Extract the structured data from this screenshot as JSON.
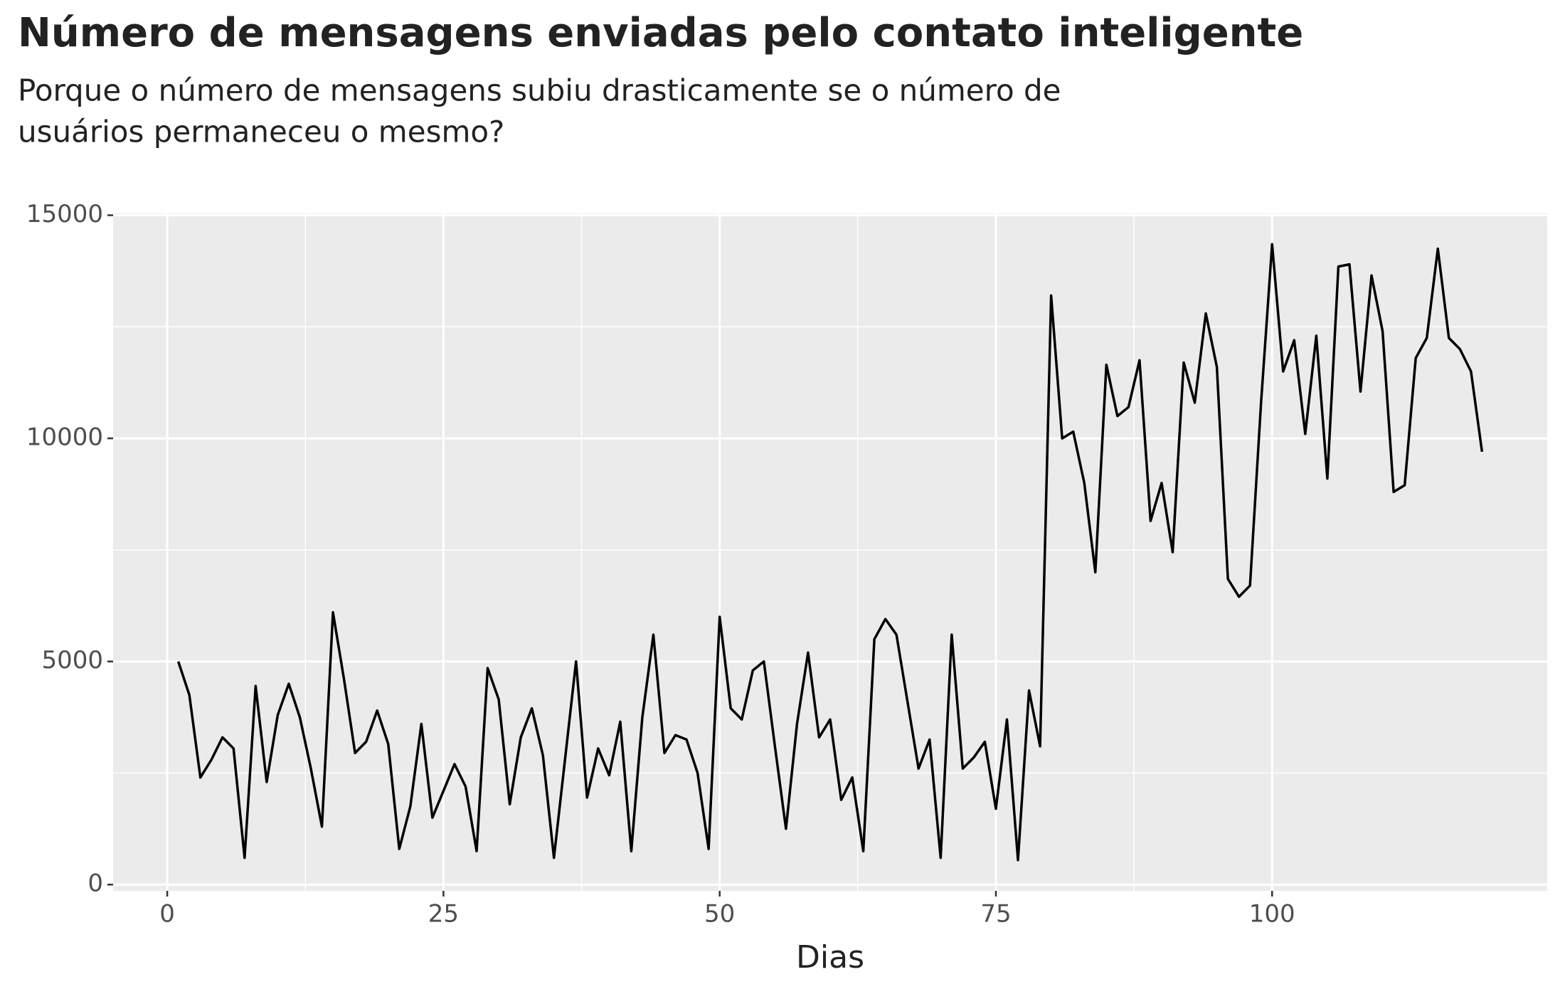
{
  "chart_data": {
    "type": "line",
    "title": "Número de mensagens enviadas pelo contato inteligente",
    "subtitle": [
      "Porque o número de mensagens subiu drasticamente se o número de",
      "usuários permaneceu o mesmo?"
    ],
    "x_label": "Dias",
    "x": [
      1,
      2,
      3,
      4,
      5,
      6,
      7,
      8,
      9,
      10,
      11,
      12,
      13,
      14,
      15,
      16,
      17,
      18,
      19,
      20,
      21,
      22,
      23,
      24,
      25,
      26,
      27,
      28,
      29,
      30,
      31,
      32,
      33,
      34,
      35,
      36,
      37,
      38,
      39,
      40,
      41,
      42,
      43,
      44,
      45,
      46,
      47,
      48,
      49,
      50,
      51,
      52,
      53,
      54,
      55,
      56,
      57,
      58,
      59,
      60,
      61,
      62,
      63,
      64,
      65,
      66,
      67,
      68,
      69,
      70,
      71,
      72,
      73,
      74,
      75,
      76,
      77,
      78,
      79,
      80,
      81,
      82,
      83,
      84,
      85,
      86,
      87,
      88,
      89,
      90,
      91,
      92,
      93,
      94,
      95,
      96,
      97,
      98,
      99,
      100,
      101,
      102,
      103,
      104,
      105,
      106,
      107,
      108,
      109,
      110,
      111,
      112,
      113,
      114,
      115,
      116,
      117,
      118,
      119
    ],
    "values": [
      5000,
      4250,
      2400,
      2800,
      3300,
      3050,
      600,
      4450,
      2300,
      3800,
      4500,
      3750,
      2600,
      1300,
      6100,
      4600,
      2950,
      3200,
      3900,
      3150,
      800,
      1750,
      3600,
      1500,
      2100,
      2700,
      2200,
      750,
      4850,
      4150,
      1800,
      3300,
      3950,
      2900,
      600,
      2800,
      5000,
      1950,
      3050,
      2450,
      3650,
      750,
      3750,
      5600,
      2950,
      3350,
      3250,
      2500,
      800,
      6000,
      3950,
      3700,
      4800,
      5000,
      3100,
      1250,
      3600,
      5200,
      3300,
      3700,
      1900,
      2400,
      750,
      5500,
      5950,
      5600,
      4100,
      2600,
      3250,
      600,
      5600,
      2600,
      2850,
      3200,
      1700,
      3700,
      550,
      4350,
      3100,
      13200,
      10000,
      10150,
      9000,
      7000,
      11650,
      10500,
      10700,
      11750,
      8150,
      9000,
      7450,
      11700,
      10800,
      12800,
      11600,
      6850,
      6450,
      6700,
      10800,
      14350,
      11500,
      12200,
      10100,
      12300,
      9100,
      13850,
      13900,
      11050,
      13650,
      12400,
      8800,
      8950,
      11800,
      12250,
      14250,
      12250,
      12000,
      11500,
      9700
    ],
    "color": "#000000",
    "xlim": [
      -4.9,
      124.9
    ],
    "xticks": [
      0,
      25,
      50,
      75,
      100
    ],
    "ylim": [
      -140,
      15040
    ],
    "yticks": [
      0,
      5000,
      10000,
      15000
    ],
    "grid": true
  }
}
